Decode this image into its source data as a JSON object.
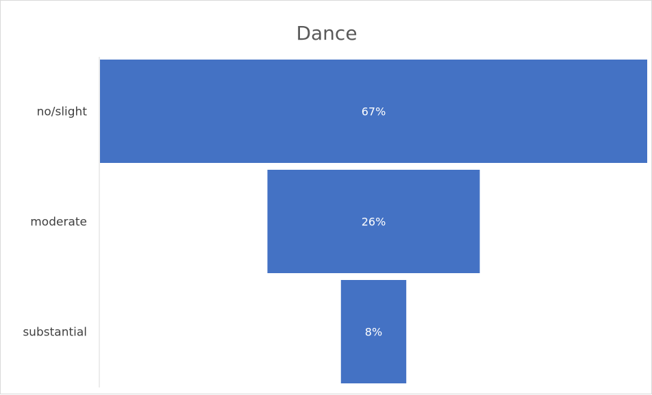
{
  "chart_data": {
    "type": "bar",
    "title": "Dance",
    "categories": [
      "no/slight",
      "moderate",
      "substantial"
    ],
    "values": [
      67,
      26,
      8
    ],
    "value_labels": [
      "67%",
      "26%",
      "8%"
    ],
    "units": "%",
    "bar_color": "#4472C4",
    "axis_color": "#d9d9d9",
    "orientation": "horizontal",
    "alignment": "centered",
    "grid": false,
    "legend": "none"
  }
}
